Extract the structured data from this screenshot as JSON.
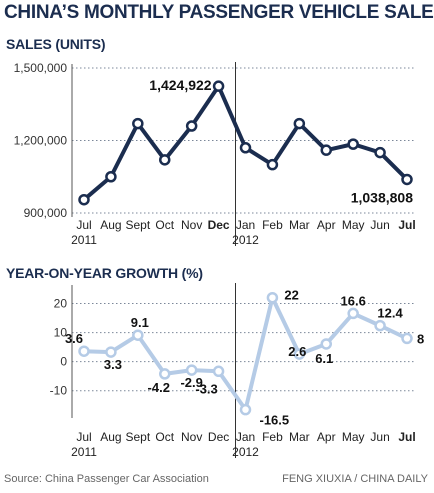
{
  "title": "CHINA’S MONTHLY PASSENGER VEHICLE SALES",
  "chart_data": [
    {
      "type": "line",
      "title": "SALES (UNITS)",
      "categories": [
        "Jul",
        "Aug",
        "Sept",
        "Oct",
        "Nov",
        "Dec",
        "Jan",
        "Feb",
        "Mar",
        "Apr",
        "May",
        "Jun",
        "Jul"
      ],
      "category_years": {
        "Jul": "2011",
        "Jan": "2012"
      },
      "series": [
        {
          "values": [
            955000,
            1050000,
            1270000,
            1120000,
            1260000,
            1424922,
            1170000,
            1100000,
            1270000,
            1160000,
            1185000,
            1150000,
            1038808
          ]
        }
      ],
      "y_ticks": [
        "1,500,000",
        "1,200,000",
        "900,000"
      ],
      "y_tick_values": [
        1500000,
        1200000,
        900000
      ],
      "ylim": [
        900000,
        1500000
      ],
      "annotations": [
        {
          "index": 5,
          "text": "1,424,922"
        },
        {
          "index": 12,
          "text": "1,038,808"
        }
      ],
      "color": "#1b2d4f",
      "grid": "dotted horizontal"
    },
    {
      "type": "line",
      "title": "YEAR-ON-YEAR GROWTH (%)",
      "categories": [
        "Jul",
        "Aug",
        "Sept",
        "Oct",
        "Nov",
        "Dec",
        "Jan",
        "Feb",
        "Mar",
        "Apr",
        "May",
        "Jun",
        "Jul"
      ],
      "category_years": {
        "Jul": "2011",
        "Jan": "2012"
      },
      "series": [
        {
          "values": [
            3.6,
            3.3,
            9.1,
            -4.2,
            -2.9,
            -3.3,
            -16.5,
            22,
            2.6,
            6.1,
            16.6,
            12.4,
            8
          ]
        }
      ],
      "data_labels": [
        "3.6",
        "3.3",
        "9.1",
        "-4.2",
        "-2.9",
        "-3.3",
        "-16.5",
        "22",
        "2.6",
        "6.1",
        "16.6",
        "12.4",
        "8"
      ],
      "y_ticks": [
        "20",
        "10",
        "0",
        "-10"
      ],
      "y_tick_values": [
        20,
        10,
        0,
        -10
      ],
      "ylim": [
        -18,
        25
      ],
      "color": "#b5cbe6",
      "grid": "dotted horizontal"
    }
  ],
  "footer": {
    "source": "Source: China Passenger Car Association",
    "credit": "FENG XIUXIA / CHINA DAILY"
  }
}
